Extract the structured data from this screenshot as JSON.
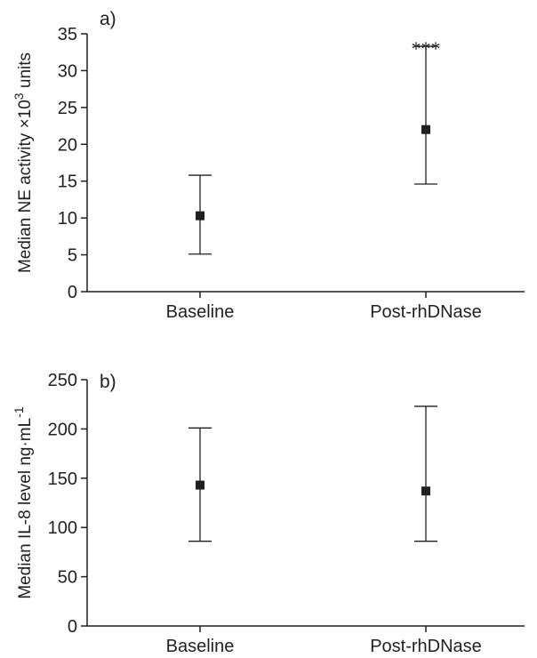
{
  "chart_data": [
    {
      "type": "scatter",
      "panel_label": "a)",
      "ylabel": "Median NE activity ×10",
      "ylabel_sup": "3",
      "ylabel_unit": " units",
      "ylim": [
        0,
        35
      ],
      "yticks": [
        0,
        5,
        10,
        15,
        20,
        25,
        30,
        35
      ],
      "categories": [
        "Baseline",
        "Post-rhDNase"
      ],
      "values": [
        10.3,
        22.0
      ],
      "lower": [
        5.1,
        14.6
      ],
      "upper": [
        15.8,
        33.3
      ],
      "annotations": [
        "",
        "***"
      ],
      "grid": false
    },
    {
      "type": "scatter",
      "panel_label": "b)",
      "ylabel": "Median IL-8 level  ng·mL",
      "ylabel_sup": "-1",
      "ylabel_unit": "",
      "ylim": [
        0,
        250
      ],
      "yticks": [
        0,
        50,
        100,
        150,
        200,
        250
      ],
      "categories": [
        "Baseline",
        "Post-rhDNase"
      ],
      "values": [
        143,
        137
      ],
      "lower": [
        86,
        86
      ],
      "upper": [
        201,
        223
      ],
      "annotations": [
        "",
        ""
      ],
      "grid": false
    }
  ]
}
